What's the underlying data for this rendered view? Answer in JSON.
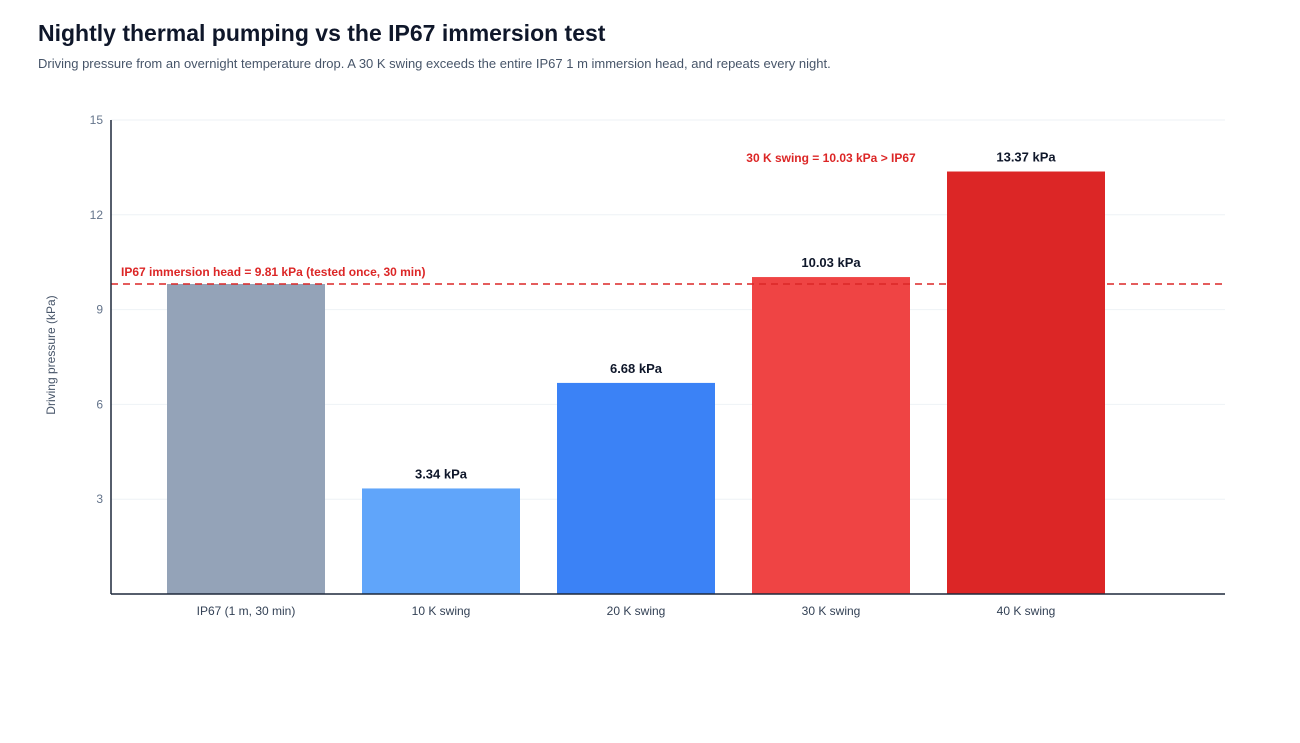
{
  "chart_data": {
    "type": "bar",
    "title": "Nightly thermal pumping vs the IP67 immersion test",
    "subtitle": "Driving pressure from an overnight temperature drop. A 30 K swing exceeds the entire IP67 1 m immersion head, and repeats every night.",
    "ylabel": "Driving pressure (kPa)",
    "xlabel": "",
    "ylim": [
      0,
      15
    ],
    "yticks": [
      3,
      6,
      9,
      12,
      15
    ],
    "grid": true,
    "categories": [
      "IP67 (1 m, 30 min)",
      "10 K swing",
      "20 K swing",
      "30 K swing",
      "40 K swing"
    ],
    "values": [
      9.81,
      3.34,
      6.68,
      10.03,
      13.37
    ],
    "value_labels": [
      "",
      "3.34 kPa",
      "6.68 kPa",
      "10.03 kPa",
      "13.37 kPa"
    ],
    "colors": [
      "#94a3b8",
      "#60a5fa",
      "#3b82f6",
      "#ef4444",
      "#dc2626"
    ],
    "reference_line": {
      "value": 9.81,
      "label": "IP67 immersion head = 9.81 kPa (tested once, 30 min)",
      "color": "#dc2626"
    },
    "annotations": [
      {
        "text": "30 K swing = 10.03 kPa > IP67",
        "category_index": 3,
        "value": 13.8,
        "color": "#dc2626"
      }
    ]
  }
}
